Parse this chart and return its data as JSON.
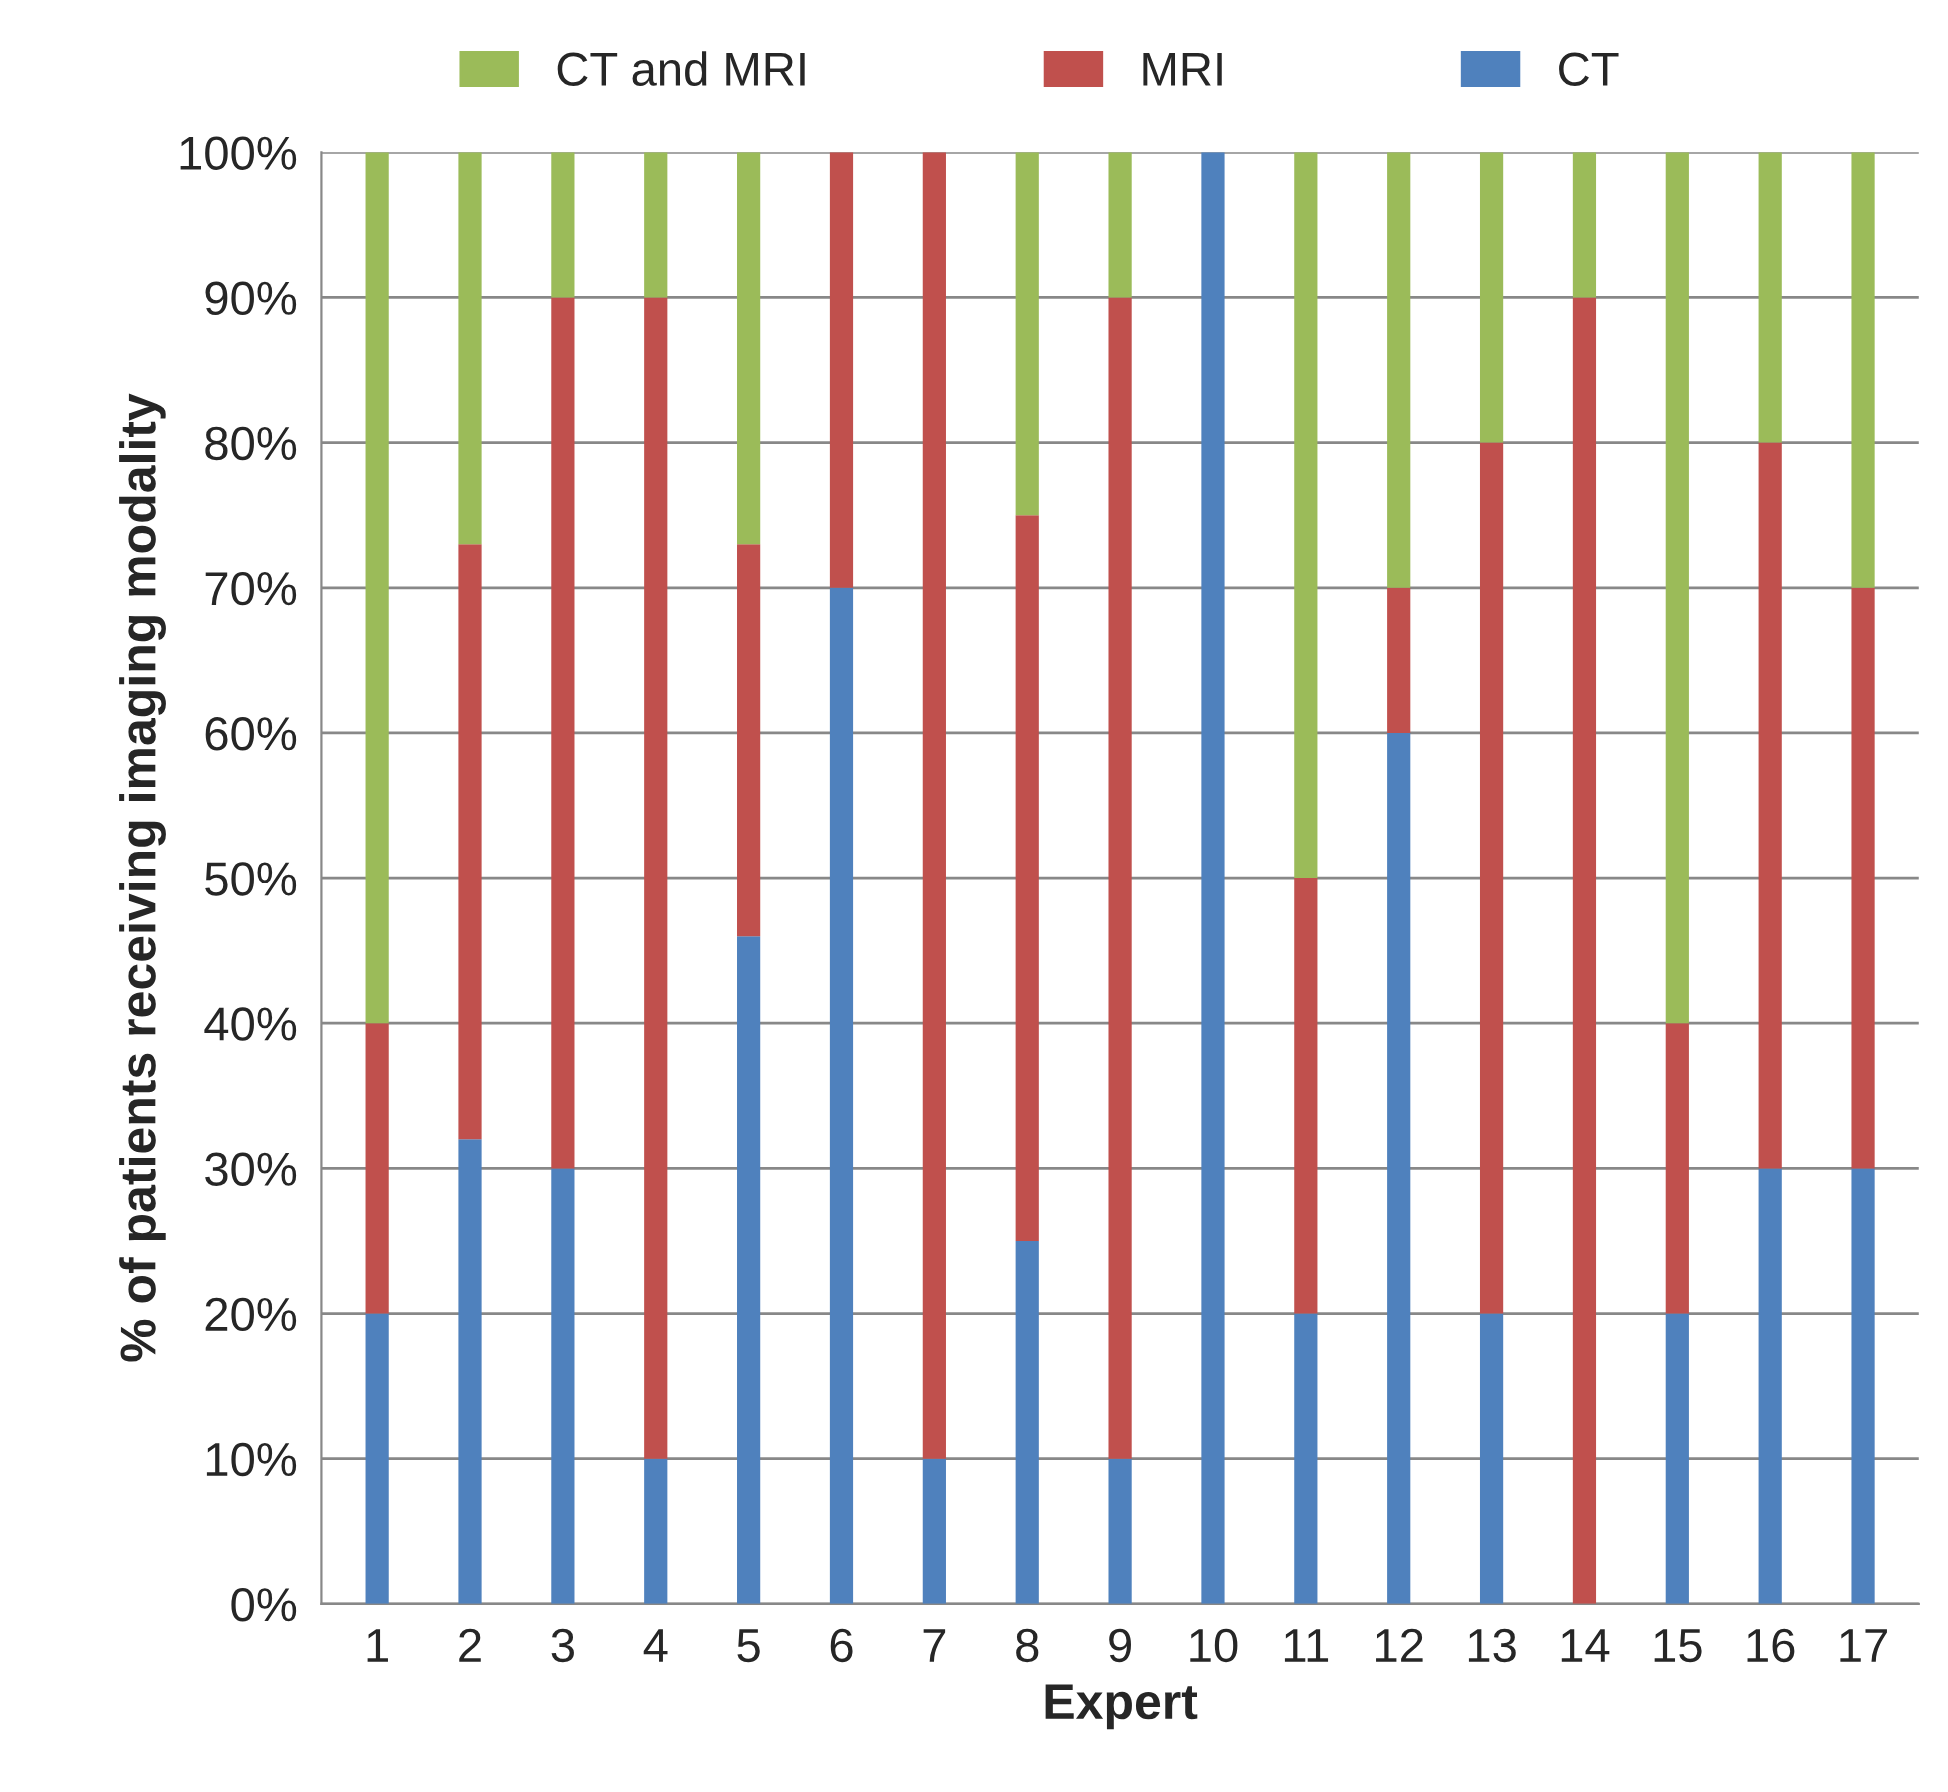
{
  "chart_data": {
    "type": "bar",
    "stacked": true,
    "xlabel": "Expert",
    "ylabel": "% of patients receiving imaging modality",
    "categories": [
      "1",
      "2",
      "3",
      "4",
      "5",
      "6",
      "7",
      "8",
      "9",
      "10",
      "11",
      "12",
      "13",
      "14",
      "15",
      "16",
      "17"
    ],
    "series": [
      {
        "name": "CT",
        "color": "#4f81bd",
        "values": [
          20,
          32,
          30,
          10,
          46,
          70,
          10,
          25,
          10,
          100,
          20,
          60,
          20,
          0,
          20,
          30,
          30
        ]
      },
      {
        "name": "MRI",
        "color": "#c0504d",
        "values": [
          20,
          41,
          60,
          80,
          27,
          30,
          90,
          50,
          80,
          0,
          30,
          10,
          60,
          90,
          20,
          50,
          40
        ]
      },
      {
        "name": "CT and MRI",
        "color": "#9bbb59",
        "values": [
          60,
          27,
          10,
          10,
          27,
          0,
          0,
          25,
          10,
          0,
          50,
          30,
          20,
          10,
          60,
          20,
          30
        ]
      }
    ],
    "ylim": [
      0,
      100
    ],
    "yticks": [
      {
        "value": 0,
        "label": "0%"
      },
      {
        "value": 10,
        "label": "10%"
      },
      {
        "value": 20,
        "label": "20%"
      },
      {
        "value": 30,
        "label": "30%"
      },
      {
        "value": 40,
        "label": "40%"
      },
      {
        "value": 50,
        "label": "50%"
      },
      {
        "value": 60,
        "label": "60%"
      },
      {
        "value": 70,
        "label": "70%"
      },
      {
        "value": 80,
        "label": "80%"
      },
      {
        "value": 90,
        "label": "90%"
      },
      {
        "value": 100,
        "label": "100%"
      }
    ],
    "grid": "y",
    "legend": "top"
  }
}
